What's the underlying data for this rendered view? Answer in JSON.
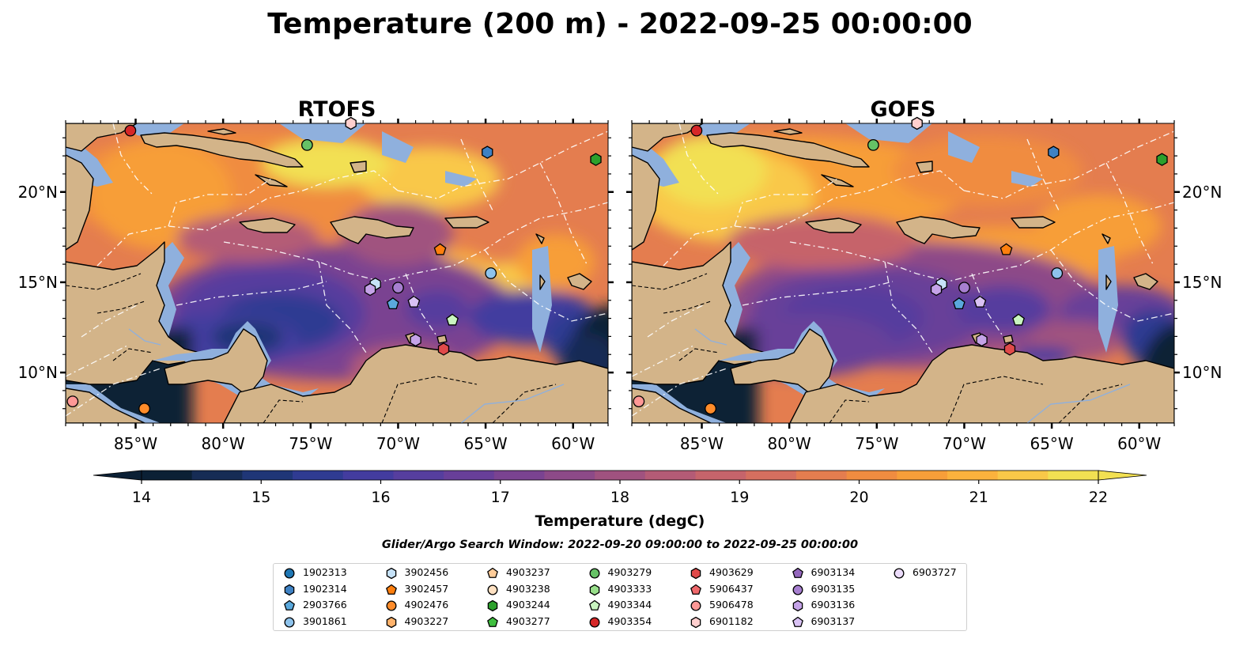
{
  "figure": {
    "title": "Temperature (200 m) - 2022-09-25 00:00:00",
    "search_window": "Glider/Argo Search Window: 2022-09-20 09:00:00 to 2022-09-25 00:00:00"
  },
  "panels": [
    {
      "title": "RTOFS",
      "model": "rtofs"
    },
    {
      "title": "GOFS",
      "model": "gofs"
    }
  ],
  "axes": {
    "lon_range": [
      -89,
      -58
    ],
    "lat_range": [
      7.2,
      23.8
    ],
    "x_ticks": [
      -85,
      -80,
      -75,
      -70,
      -65,
      -60
    ],
    "x_tick_labels": [
      "85°W",
      "80°W",
      "75°W",
      "70°W",
      "65°W",
      "60°W"
    ],
    "y_ticks": [
      10,
      15,
      20
    ],
    "y_tick_labels": [
      "10°N",
      "15°N",
      "20°N"
    ]
  },
  "colorbar": {
    "label": "Temperature (degC)",
    "min": 14,
    "max": 22,
    "step": 0.5,
    "ticks": [
      14,
      15,
      16,
      17,
      18,
      19,
      20,
      21,
      22
    ],
    "tick_labels": [
      "14",
      "15",
      "16",
      "17",
      "18",
      "19",
      "20",
      "21",
      "22"
    ],
    "extend": "both",
    "colors": [
      "#0b2035",
      "#162c55",
      "#1f3677",
      "#2f3b92",
      "#433c9f",
      "#563e9e",
      "#683f99",
      "#7a4391",
      "#8d4a88",
      "#a0527f",
      "#b45b76",
      "#c6646b",
      "#d56f5f",
      "#e47d4f",
      "#f08c40",
      "#f79e39",
      "#fbb23d",
      "#f9c848",
      "#f2e052"
    ]
  },
  "colors": {
    "land": "#d3b489",
    "shelf": "#8fb0dd",
    "coastline": "#000000",
    "eez": "#ffffff"
  },
  "platforms": [
    {
      "id": "1902313",
      "color": "#1f77b4",
      "marker": "circle"
    },
    {
      "id": "1902314",
      "color": "#3f82c4",
      "marker": "hexagon"
    },
    {
      "id": "2903766",
      "color": "#5aa8dc",
      "marker": "pentagon"
    },
    {
      "id": "3901861",
      "color": "#8ec3ec",
      "marker": "circle"
    },
    {
      "id": "3902456",
      "color": "#c6e2f8",
      "marker": "hexagon"
    },
    {
      "id": "3902457",
      "color": "#ff7f0e",
      "marker": "pentagon"
    },
    {
      "id": "4902476",
      "color": "#ff8c2a",
      "marker": "circle"
    },
    {
      "id": "4903227",
      "color": "#ffb26b",
      "marker": "hexagon"
    },
    {
      "id": "4903237",
      "color": "#ffcc99",
      "marker": "pentagon"
    },
    {
      "id": "4903238",
      "color": "#ffe1c2",
      "marker": "circle"
    },
    {
      "id": "4903244",
      "color": "#2ca02c",
      "marker": "hexagon"
    },
    {
      "id": "4903277",
      "color": "#3fbf3f",
      "marker": "pentagon"
    },
    {
      "id": "4903279",
      "color": "#66c266",
      "marker": "circle"
    },
    {
      "id": "4903333",
      "color": "#98df8a",
      "marker": "hexagon"
    },
    {
      "id": "4903344",
      "color": "#c9f5c0",
      "marker": "pentagon"
    },
    {
      "id": "4903354",
      "color": "#d62728",
      "marker": "circle"
    },
    {
      "id": "4903629",
      "color": "#e04a4a",
      "marker": "hexagon"
    },
    {
      "id": "5906437",
      "color": "#f0686b",
      "marker": "pentagon"
    },
    {
      "id": "5906478",
      "color": "#ff9896",
      "marker": "circle"
    },
    {
      "id": "6901182",
      "color": "#ffcfce",
      "marker": "hexagon"
    },
    {
      "id": "6903134",
      "color": "#9467bd",
      "marker": "pentagon"
    },
    {
      "id": "6903135",
      "color": "#a77fd0",
      "marker": "circle"
    },
    {
      "id": "6903136",
      "color": "#c5a3e8",
      "marker": "hexagon"
    },
    {
      "id": "6903137",
      "color": "#d9c2f4",
      "marker": "pentagon"
    },
    {
      "id": "6903727",
      "color": "#ecdcfb",
      "marker": "circle"
    }
  ],
  "observations": [
    {
      "id": "4903354",
      "lon": -85.3,
      "lat": 23.4
    },
    {
      "id": "4903279",
      "lon": -75.2,
      "lat": 22.6
    },
    {
      "id": "6901182",
      "lon": -72.7,
      "lat": 23.8
    },
    {
      "id": "1902314",
      "lon": -64.9,
      "lat": 22.2
    },
    {
      "id": "4903244",
      "lon": -58.7,
      "lat": 21.8
    },
    {
      "id": "3902457",
      "lon": -67.6,
      "lat": 16.8
    },
    {
      "id": "3901861",
      "lon": -64.7,
      "lat": 15.5
    },
    {
      "id": "3902456",
      "lon": -71.3,
      "lat": 14.9
    },
    {
      "id": "6903136",
      "lon": -71.6,
      "lat": 14.6
    },
    {
      "id": "6903135",
      "lon": -70.0,
      "lat": 14.7
    },
    {
      "id": "2903766",
      "lon": -70.3,
      "lat": 13.8
    },
    {
      "id": "6903137",
      "lon": -69.1,
      "lat": 13.9
    },
    {
      "id": "4903344",
      "lon": -66.9,
      "lat": 12.9
    },
    {
      "id": "6903136",
      "lon": -69.0,
      "lat": 11.8
    },
    {
      "id": "4903629",
      "lon": -67.4,
      "lat": 11.3
    },
    {
      "id": "5906478",
      "lon": -88.6,
      "lat": 8.4
    },
    {
      "id": "4902476",
      "lon": -84.5,
      "lat": 8.0
    }
  ]
}
